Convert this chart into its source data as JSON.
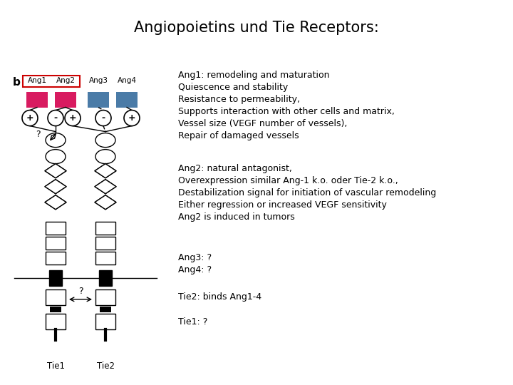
{
  "title": "Angiopoietins und Tie Receptors:",
  "title_bg": "#7EC8C8",
  "title_bar_color": "#1a1aaa",
  "body_bg": "#FFFFFF",
  "label_b": "b",
  "ang_labels": [
    "Ang1",
    "Ang2",
    "Ang3",
    "Ang4"
  ],
  "ang_colors": [
    "#D81B60",
    "#D81B60",
    "#4A7BA7",
    "#4A7BA7"
  ],
  "tie_labels": [
    "Tie1",
    "Tie2"
  ],
  "text_ang1": "Ang1: remodeling and maturation\nQuiescence and stability\nResistance to permeability,\nSupports interaction with other cells and matrix,\nVessel size (VEGF number of vessels),\nRepair of damaged vessels",
  "text_ang2": "Ang2: natural antagonist,\nOverexpression similar Ang-1 k.o. oder Tie-2 k.o.,\nDestabilization signal for initiation of vascular remodeling\nEither regression or increased VEGF sensitivity\nAng2 is induced in tumors",
  "text_ang34": "Ang3: ?\nAng4: ?",
  "text_tie2": "Tie2: binds Ang1-4",
  "text_tie1": "Tie1: ?",
  "text_fontsize": 9.0,
  "header_fontsize": 15
}
